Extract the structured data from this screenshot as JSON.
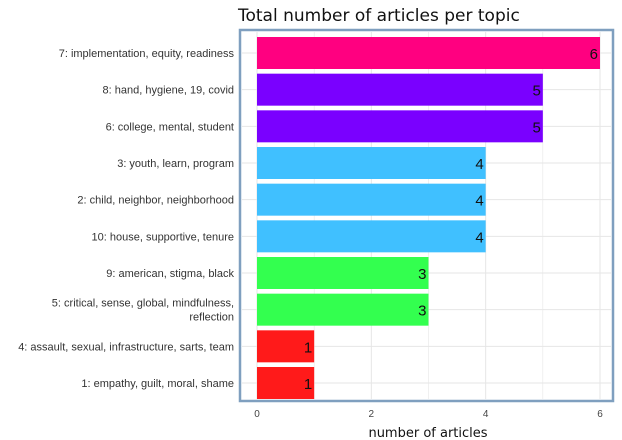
{
  "chart_data": {
    "type": "bar",
    "orientation": "horizontal",
    "title": "Total number of articles per topic",
    "xlabel": "number of articles",
    "ylabel": "",
    "xlim": [
      0,
      6.2
    ],
    "xticks": [
      0,
      2,
      4,
      6
    ],
    "grid": true,
    "categories": [
      "7: implementation, equity, readiness",
      "8: hand, hygiene, 19, covid",
      "6: college, mental, student",
      "3: youth, learn, program",
      "2: child, neighbor, neighborhood",
      "10: house, supportive, tenure",
      "9: american, stigma, black",
      "5: critical, sense, global, mindfulness, reflection",
      "4: assault, sexual, infrastructure, sarts, team",
      "1: empathy, guilt, moral, shame"
    ],
    "category_lines": [
      [
        "7: implementation, equity, readiness"
      ],
      [
        "8: hand, hygiene, 19, covid"
      ],
      [
        "6: college, mental, student"
      ],
      [
        "3: youth, learn, program"
      ],
      [
        "2: child, neighbor, neighborhood"
      ],
      [
        "10: house, supportive, tenure"
      ],
      [
        "9: american, stigma, black"
      ],
      [
        "5: critical, sense, global, mindfulness,",
        "reflection"
      ],
      [
        "4: assault, sexual, infrastructure, sarts, team"
      ],
      [
        "1: empathy, guilt, moral, shame"
      ]
    ],
    "values": [
      6,
      5,
      5,
      4,
      4,
      4,
      3,
      3,
      1,
      1
    ],
    "colors": [
      "#ff0080",
      "#7a00ff",
      "#7a00ff",
      "#40c0ff",
      "#40c0ff",
      "#40c0ff",
      "#33ff4f",
      "#33ff4f",
      "#ff1a1a",
      "#ff1a1a"
    ],
    "panel_border_color": "#7f9fbf",
    "grid_color": "#e6e6e6"
  }
}
